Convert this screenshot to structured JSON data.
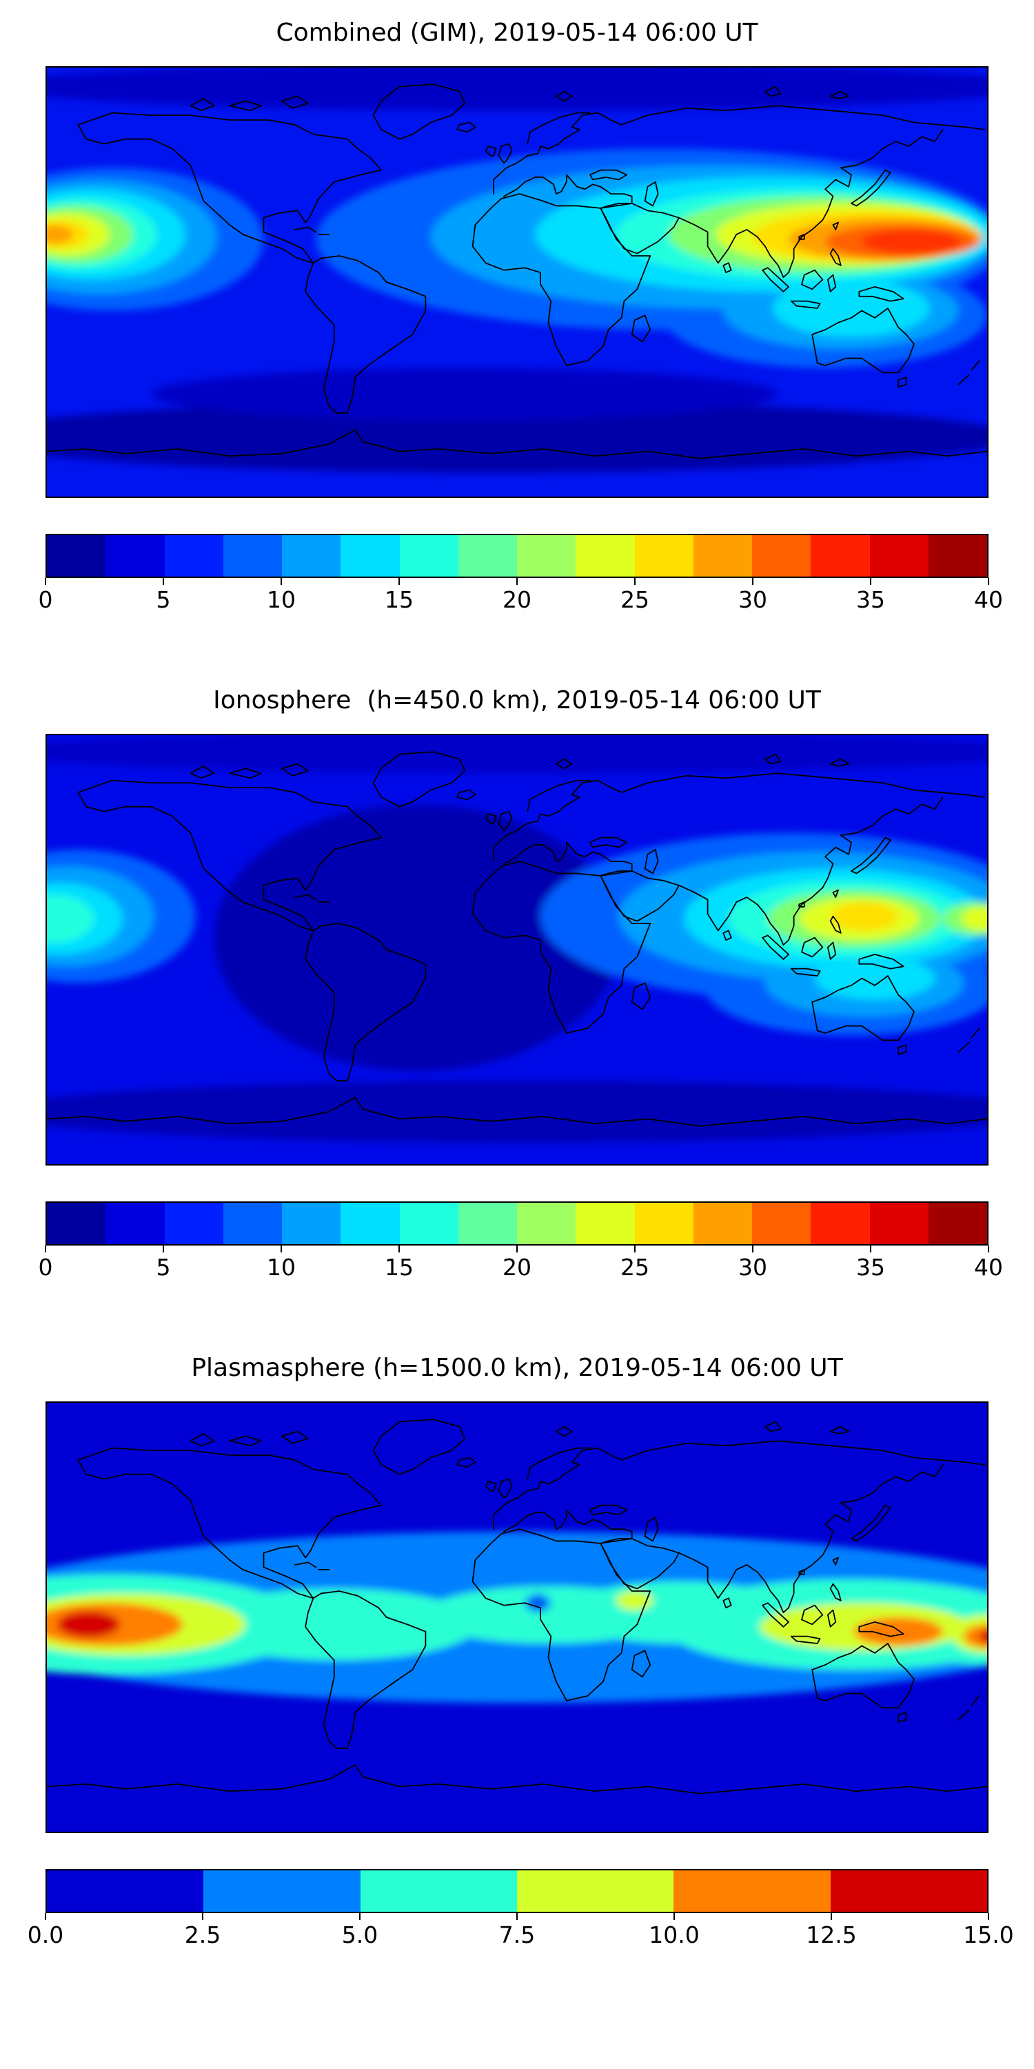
{
  "figure": {
    "background": "#ffffff",
    "description": "Three stacked global filled-contour maps (jet colormap) of total electron content with horizontal colorbars"
  },
  "chart_data": [
    {
      "type": "heatmap",
      "subtype": "filled-contour-world-map",
      "title": "Combined (GIM), 2019-05-14 06:00 UT",
      "projection": "equirectangular",
      "lon_range": [
        -180,
        180
      ],
      "lat_range": [
        -90,
        90
      ],
      "colormap": "jet",
      "vmin": 0,
      "vmax": 40,
      "n_levels": 16,
      "level_step": 2.5,
      "colorbar_ticks": [
        "0",
        "5",
        "10",
        "15",
        "20",
        "25",
        "30",
        "35",
        "40"
      ],
      "colorbar_colors": [
        "#0000A0",
        "#0000DF",
        "#0020FF",
        "#0060FF",
        "#00A0FF",
        "#00DFFF",
        "#20FFDF",
        "#60FFA0",
        "#A0FF60",
        "#DFFF20",
        "#FFDF00",
        "#FFA000",
        "#FF6000",
        "#FF2000",
        "#DF0000",
        "#A00000"
      ],
      "base_color": "#0014F0",
      "base_value": 6,
      "features": [
        {
          "lon": 0,
          "lat": 82,
          "rx": 200,
          "ry": 10,
          "color": "#0000C4",
          "value": 2
        },
        {
          "lon": -10,
          "lat": -65,
          "rx": 200,
          "ry": 15,
          "color": "#0000A8",
          "value": 1
        },
        {
          "lon": -20,
          "lat": -47,
          "rx": 120,
          "ry": 11,
          "color": "#0000C4",
          "value": 3
        },
        {
          "lon": 55,
          "lat": 18,
          "rx": 132,
          "ry": 38,
          "color": "#0060FF",
          "value": 12
        },
        {
          "lon": -155,
          "lat": 18,
          "rx": 58,
          "ry": 30,
          "color": "#0060FF",
          "value": 12
        },
        {
          "lon": 118,
          "lat": -14,
          "rx": 62,
          "ry": 22,
          "color": "#0060FF",
          "value": 12
        },
        {
          "lon": 75,
          "lat": 19,
          "rx": 108,
          "ry": 30,
          "color": "#00A0FF",
          "value": 16
        },
        {
          "lon": -160,
          "lat": 19,
          "rx": 45,
          "ry": 24,
          "color": "#00A0FF",
          "value": 16
        },
        {
          "lon": 124,
          "lat": -12,
          "rx": 45,
          "ry": 16,
          "color": "#00A0FF",
          "value": 16
        },
        {
          "lon": 95,
          "lat": 20,
          "rx": 88,
          "ry": 24,
          "color": "#00DFFF",
          "value": 20
        },
        {
          "lon": -163,
          "lat": 20,
          "rx": 36,
          "ry": 19,
          "color": "#00DFFF",
          "value": 20
        },
        {
          "lon": 128,
          "lat": -11,
          "rx": 30,
          "ry": 12,
          "color": "#00DFFF",
          "value": 20
        },
        {
          "lon": 108,
          "lat": 20,
          "rx": 70,
          "ry": 19,
          "color": "#20FFDF",
          "value": 23
        },
        {
          "lon": -166,
          "lat": 20,
          "rx": 28,
          "ry": 15,
          "color": "#20FFDF",
          "value": 23
        },
        {
          "lon": 116,
          "lat": 20,
          "rx": 58,
          "ry": 16,
          "color": "#80FF70",
          "value": 25
        },
        {
          "lon": -169,
          "lat": 20,
          "rx": 22,
          "ry": 12,
          "color": "#80FF70",
          "value": 25
        },
        {
          "lon": 126,
          "lat": 20,
          "rx": 50,
          "ry": 13,
          "color": "#DFFF20",
          "value": 28
        },
        {
          "lon": -172,
          "lat": 20,
          "rx": 16,
          "ry": 9,
          "color": "#DFFF20",
          "value": 28
        },
        {
          "lon": 134,
          "lat": 19,
          "rx": 44,
          "ry": 11,
          "color": "#FFDF00",
          "value": 30
        },
        {
          "lon": -175,
          "lat": 20,
          "rx": 11,
          "ry": 6,
          "color": "#FFDF00",
          "value": 30
        },
        {
          "lon": 141,
          "lat": 18,
          "rx": 37,
          "ry": 9,
          "color": "#FFA000",
          "value": 33
        },
        {
          "lon": -177,
          "lat": 20,
          "rx": 7,
          "ry": 4,
          "color": "#FFA000",
          "value": 32
        },
        {
          "lon": 147,
          "lat": 17,
          "rx": 29,
          "ry": 7,
          "color": "#FF6000",
          "value": 35
        },
        {
          "lon": 151,
          "lat": 17,
          "rx": 19,
          "ry": 5,
          "color": "#FF3000",
          "value": 37
        }
      ]
    },
    {
      "type": "heatmap",
      "subtype": "filled-contour-world-map",
      "title": "Ionosphere  (h=450.0 km), 2019-05-14 06:00 UT",
      "projection": "equirectangular",
      "lon_range": [
        -180,
        180
      ],
      "lat_range": [
        -90,
        90
      ],
      "colormap": "jet",
      "vmin": 0,
      "vmax": 40,
      "n_levels": 16,
      "level_step": 2.5,
      "colorbar_ticks": [
        "0",
        "5",
        "10",
        "15",
        "20",
        "25",
        "30",
        "35",
        "40"
      ],
      "colorbar_colors": [
        "#0000A0",
        "#0000DF",
        "#0020FF",
        "#0060FF",
        "#00A0FF",
        "#00DFFF",
        "#20FFDF",
        "#60FFA0",
        "#A0FF60",
        "#DFFF20",
        "#FFDF00",
        "#FFA000",
        "#FF6000",
        "#FF2000",
        "#DF0000",
        "#A00000"
      ],
      "base_color": "#000AE8",
      "base_value": 5,
      "features": [
        {
          "lon": -38,
          "lat": 5,
          "rx": 78,
          "ry": 56,
          "color": "#0000B0",
          "value": 2
        },
        {
          "lon": 0,
          "lat": -68,
          "rx": 200,
          "ry": 13,
          "color": "#0000B4",
          "value": 2
        },
        {
          "lon": 0,
          "lat": 83,
          "rx": 200,
          "ry": 9,
          "color": "#0000C8",
          "value": 3
        },
        {
          "lon": 105,
          "lat": 14,
          "rx": 96,
          "ry": 35,
          "color": "#0060FF",
          "value": 10
        },
        {
          "lon": -168,
          "lat": 14,
          "rx": 45,
          "ry": 28,
          "color": "#0060FF",
          "value": 10
        },
        {
          "lon": 128,
          "lat": -16,
          "rx": 56,
          "ry": 20,
          "color": "#0060FF",
          "value": 10
        },
        {
          "lon": 115,
          "lat": 14,
          "rx": 76,
          "ry": 27,
          "color": "#00A0FF",
          "value": 13
        },
        {
          "lon": -172,
          "lat": 14,
          "rx": 33,
          "ry": 21,
          "color": "#00A0FF",
          "value": 13
        },
        {
          "lon": 133,
          "lat": -14,
          "rx": 38,
          "ry": 14,
          "color": "#00A0FF",
          "value": 13
        },
        {
          "lon": 122,
          "lat": 13,
          "rx": 58,
          "ry": 21,
          "color": "#00DFFF",
          "value": 17
        },
        {
          "lon": -175,
          "lat": 13,
          "rx": 24,
          "ry": 15,
          "color": "#00DFFF",
          "value": 17
        },
        {
          "lon": 137,
          "lat": -12,
          "rx": 23,
          "ry": 9,
          "color": "#00DFFF",
          "value": 17
        },
        {
          "lon": 126,
          "lat": 13,
          "rx": 45,
          "ry": 16,
          "color": "#20FFDF",
          "value": 20
        },
        {
          "lon": -177,
          "lat": 13,
          "rx": 15,
          "ry": 10,
          "color": "#20FFDF",
          "value": 20
        },
        {
          "lon": 129,
          "lat": 13,
          "rx": 33,
          "ry": 12,
          "color": "#80FF70",
          "value": 23
        },
        {
          "lon": 176,
          "lat": 13,
          "rx": 13,
          "ry": 7,
          "color": "#80FF70",
          "value": 23
        },
        {
          "lon": 131,
          "lat": 13,
          "rx": 23,
          "ry": 9,
          "color": "#DFFF20",
          "value": 26
        },
        {
          "lon": 178,
          "lat": 13,
          "rx": 8,
          "ry": 5,
          "color": "#DFFF20",
          "value": 26
        },
        {
          "lon": 133,
          "lat": 14,
          "rx": 13,
          "ry": 6,
          "color": "#FFE000",
          "value": 28
        }
      ]
    },
    {
      "type": "heatmap",
      "subtype": "filled-contour-world-map",
      "title": "Plasmasphere (h=1500.0 km), 2019-05-14 06:00 UT",
      "projection": "equirectangular",
      "lon_range": [
        -180,
        180
      ],
      "lat_range": [
        -90,
        90
      ],
      "colormap": "jet",
      "vmin": 0,
      "vmax": 15,
      "n_levels": 6,
      "level_step": 2.5,
      "colorbar_ticks": [
        "0.0",
        "2.5",
        "5.0",
        "7.5",
        "10.0",
        "12.5",
        "15.0"
      ],
      "colorbar_colors": [
        "#0000D4",
        "#0080FF",
        "#2AFFD4",
        "#D4FF2A",
        "#FF8000",
        "#D40000"
      ],
      "base_color": "#0000D4",
      "base_value": 1,
      "features": [
        {
          "lon": 0,
          "lat": 0,
          "rx": 220,
          "ry": 36,
          "color": "#0080FF",
          "value": 3.5
        },
        {
          "lon": -155,
          "lat": -3,
          "rx": 75,
          "ry": 21,
          "color": "#2AFFD4",
          "value": 6
        },
        {
          "lon": -70,
          "lat": -3,
          "rx": 55,
          "ry": 15,
          "color": "#2AFFD4",
          "value": 6
        },
        {
          "lon": 12,
          "lat": 1,
          "rx": 48,
          "ry": 12,
          "color": "#2AFFD4",
          "value": 6
        },
        {
          "lon": 62,
          "lat": 2,
          "rx": 45,
          "ry": 13,
          "color": "#2AFFD4",
          "value": 6
        },
        {
          "lon": 128,
          "lat": -3,
          "rx": 72,
          "ry": 19,
          "color": "#2AFFD4",
          "value": 6
        },
        {
          "lon": 177,
          "lat": -5,
          "rx": 25,
          "ry": 15,
          "color": "#2AFFD4",
          "value": 6
        },
        {
          "lon": -150,
          "lat": -3,
          "rx": 46,
          "ry": 13,
          "color": "#D4FF2A",
          "value": 8.5
        },
        {
          "lon": 133,
          "lat": -4,
          "rx": 40,
          "ry": 10,
          "color": "#D4FF2A",
          "value": 8.5
        },
        {
          "lon": 179,
          "lat": -7,
          "rx": 13,
          "ry": 8,
          "color": "#D4FF2A",
          "value": 8.5
        },
        {
          "lon": 45,
          "lat": 7,
          "rx": 7,
          "ry": 4,
          "color": "#D4FF2A",
          "value": 8.5
        },
        {
          "lon": -157,
          "lat": -3,
          "rx": 29,
          "ry": 9,
          "color": "#FF8000",
          "value": 11
        },
        {
          "lon": 146,
          "lat": -6,
          "rx": 17,
          "ry": 6,
          "color": "#FF8000",
          "value": 11
        },
        {
          "lon": 180,
          "lat": -8,
          "rx": 9,
          "ry": 5,
          "color": "#FF8000",
          "value": 11
        },
        {
          "lon": -164,
          "lat": -3,
          "rx": 12,
          "ry": 5.5,
          "color": "#D40000",
          "value": 14
        },
        {
          "lon": 181,
          "lat": -8,
          "rx": 4,
          "ry": 3,
          "color": "#D40000",
          "value": 13
        },
        {
          "lon": 8,
          "lat": 6,
          "rx": 5,
          "ry": 4,
          "color": "#0080FF",
          "value": 3
        },
        {
          "lon": 8,
          "lat": 6,
          "rx": 2.5,
          "ry": 2,
          "color": "#0040E8",
          "value": 2
        }
      ]
    }
  ]
}
